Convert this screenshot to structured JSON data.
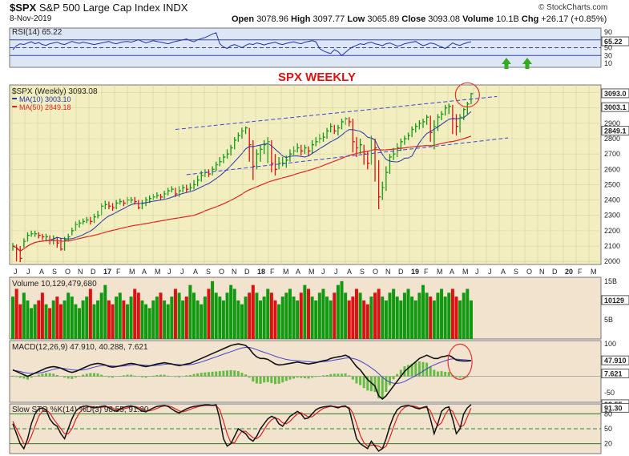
{
  "header": {
    "symbol": "$SPX",
    "name": "S&P 500 Large Cap Index",
    "exchange": "INDX",
    "date": "8-Nov-2019",
    "open_label": "Open",
    "open": "3078.96",
    "high_label": "High",
    "high": "3097.77",
    "low_label": "Low",
    "low": "3065.89",
    "close_label": "Close",
    "close": "3093.08",
    "volume_label": "Volume",
    "volume": "10.1B",
    "chg_label": "Chg",
    "chg": "+26.17 (+0.85%)",
    "watermark": "© StockCharts.com",
    "annotation": "SPX WEEKLY"
  },
  "colors": {
    "price_bg": "#f2eec0",
    "panel_bg": "#f2e3cf",
    "rsi_bg": "#dde6f4",
    "up": "#119911",
    "down": "#dd1111",
    "ma10": "#2233aa",
    "ma50": "#dd2222",
    "trendline": "#3344dd",
    "circle": "#e33333",
    "arrow": "#33aa22"
  },
  "chart_data": [
    {
      "id": "rsi",
      "type": "line",
      "legend": "RSI(14) 65.22",
      "ylim": [
        0,
        100
      ],
      "yticks": [
        "90",
        "70",
        "65.22",
        "50",
        "30",
        "10"
      ],
      "levels": [
        70,
        50,
        30
      ],
      "values": [
        45,
        55,
        60,
        58,
        62,
        65,
        60,
        63,
        58,
        56,
        60,
        62,
        64,
        60,
        58,
        62,
        66,
        63,
        61,
        64,
        62,
        60,
        58,
        60,
        62,
        64,
        66,
        62,
        60,
        63,
        65,
        66,
        64,
        67,
        70,
        66,
        62,
        65,
        68,
        66,
        64,
        62,
        60,
        63,
        66,
        68,
        70,
        72,
        68,
        65,
        70,
        73,
        76,
        80,
        85,
        88,
        60,
        52,
        48,
        55,
        58,
        54,
        50,
        56,
        60,
        58,
        62,
        60,
        57,
        60,
        62,
        64,
        60,
        58,
        61,
        63,
        65,
        62,
        60,
        64,
        66,
        68,
        65,
        48,
        42,
        38,
        35,
        45,
        40,
        30,
        38,
        46,
        52,
        56,
        60,
        58,
        62,
        64,
        60,
        58,
        55,
        60,
        62,
        58,
        54,
        56,
        60,
        62,
        64,
        66,
        60,
        55,
        58,
        62,
        60,
        56,
        52,
        48,
        55,
        62,
        58,
        56,
        60,
        63,
        65
      ]
    },
    {
      "id": "price",
      "type": "ohlc",
      "legend": "$SPX (Weekly) 3093.08",
      "series": [
        {
          "name": "MA(10) 3003.10",
          "kind": "ma",
          "period": 10
        },
        {
          "name": "MA(50) 2849.18",
          "kind": "ma",
          "period": 50
        }
      ],
      "ylim": [
        1980,
        3150
      ],
      "yticks": [
        "3000",
        "2900",
        "2800",
        "2700",
        "2600",
        "2500",
        "2400",
        "2300",
        "2200",
        "2100",
        "2000"
      ],
      "last_labels": [
        "3093.0",
        "3003.1",
        "2849.1"
      ],
      "xticks": [
        "J",
        "J",
        "A",
        "S",
        "O",
        "N",
        "D",
        "17",
        "F",
        "M",
        "A",
        "M",
        "J",
        "J",
        "A",
        "S",
        "O",
        "N",
        "D",
        "18",
        "F",
        "M",
        "A",
        "M",
        "J",
        "J",
        "A",
        "S",
        "O",
        "N",
        "D",
        "19",
        "F",
        "M",
        "A",
        "M",
        "J",
        "J",
        "A",
        "S",
        "O",
        "N",
        "D",
        "20",
        "F",
        "M"
      ],
      "closes": [
        2100,
        2080,
        2020,
        2130,
        2170,
        2180,
        2180,
        2170,
        2160,
        2160,
        2140,
        2150,
        2120,
        2080,
        2140,
        2160,
        2200,
        2240,
        2250,
        2260,
        2270,
        2260,
        2290,
        2300,
        2360,
        2370,
        2360,
        2350,
        2380,
        2390,
        2380,
        2400,
        2400,
        2390,
        2350,
        2380,
        2400,
        2410,
        2420,
        2430,
        2420,
        2440,
        2460,
        2470,
        2440,
        2460,
        2480,
        2470,
        2480,
        2500,
        2530,
        2560,
        2580,
        2570,
        2600,
        2630,
        2650,
        2680,
        2700,
        2740,
        2790,
        2820,
        2850,
        2870,
        2760,
        2620,
        2700,
        2730,
        2760,
        2780,
        2640,
        2600,
        2640,
        2640,
        2660,
        2700,
        2720,
        2740,
        2720,
        2740,
        2720,
        2760,
        2780,
        2800,
        2810,
        2850,
        2880,
        2850,
        2870,
        2910,
        2930,
        2910,
        2780,
        2740,
        2760,
        2700,
        2640,
        2800,
        2740,
        2420,
        2480,
        2580,
        2680,
        2700,
        2740,
        2780,
        2800,
        2820,
        2860,
        2880,
        2900,
        2910,
        2940,
        2840,
        2880,
        2940,
        2960,
        3000,
        3010,
        2930,
        2880,
        2940,
        2990,
        3025,
        3093
      ],
      "highs": [
        2120,
        2110,
        2100,
        2150,
        2190,
        2200,
        2200,
        2190,
        2180,
        2180,
        2170,
        2170,
        2160,
        2150,
        2160,
        2180,
        2220,
        2260,
        2270,
        2280,
        2290,
        2290,
        2310,
        2330,
        2380,
        2395,
        2390,
        2380,
        2400,
        2410,
        2400,
        2420,
        2420,
        2420,
        2400,
        2400,
        2420,
        2430,
        2440,
        2450,
        2440,
        2460,
        2480,
        2490,
        2480,
        2490,
        2500,
        2500,
        2510,
        2530,
        2560,
        2590,
        2600,
        2600,
        2620,
        2650,
        2680,
        2700,
        2730,
        2760,
        2810,
        2840,
        2872,
        2880,
        2870,
        2790,
        2730,
        2760,
        2790,
        2810,
        2790,
        2700,
        2680,
        2680,
        2690,
        2730,
        2750,
        2770,
        2760,
        2760,
        2750,
        2790,
        2810,
        2830,
        2840,
        2870,
        2900,
        2890,
        2890,
        2930,
        2940,
        2940,
        2930,
        2810,
        2800,
        2760,
        2720,
        2820,
        2800,
        2660,
        2520,
        2620,
        2700,
        2740,
        2770,
        2800,
        2820,
        2840,
        2880,
        2900,
        2920,
        2930,
        2955,
        2950,
        2920,
        2960,
        2980,
        3020,
        3028,
        3020,
        2960,
        2960,
        3000,
        3040,
        3098
      ],
      "lows": [
        2070,
        2000,
        1995,
        2090,
        2130,
        2160,
        2160,
        2150,
        2140,
        2130,
        2110,
        2110,
        2090,
        2070,
        2070,
        2130,
        2170,
        2200,
        2220,
        2240,
        2250,
        2240,
        2250,
        2280,
        2300,
        2340,
        2340,
        2330,
        2340,
        2370,
        2360,
        2370,
        2380,
        2370,
        2340,
        2340,
        2360,
        2380,
        2400,
        2410,
        2400,
        2410,
        2430,
        2450,
        2420,
        2420,
        2450,
        2450,
        2460,
        2470,
        2490,
        2520,
        2550,
        2550,
        2560,
        2590,
        2620,
        2640,
        2670,
        2690,
        2730,
        2780,
        2800,
        2830,
        2650,
        2530,
        2600,
        2650,
        2700,
        2640,
        2580,
        2560,
        2600,
        2620,
        2610,
        2650,
        2690,
        2710,
        2690,
        2700,
        2690,
        2700,
        2750,
        2770,
        2780,
        2800,
        2840,
        2830,
        2820,
        2860,
        2890,
        2880,
        2710,
        2680,
        2700,
        2630,
        2600,
        2630,
        2520,
        2340,
        2400,
        2460,
        2570,
        2660,
        2680,
        2720,
        2760,
        2790,
        2810,
        2840,
        2860,
        2870,
        2890,
        2780,
        2730,
        2850,
        2920,
        2950,
        2960,
        2830,
        2820,
        2840,
        2920,
        2960,
        3024
      ],
      "channel": {
        "upper": {
          "from": [
            44,
            2860
          ],
          "to": [
            131,
            3075
          ]
        },
        "lower": {
          "from": [
            47,
            2565
          ],
          "to": [
            134,
            2805
          ]
        }
      }
    },
    {
      "id": "volume",
      "type": "bar",
      "legend": "Volume 10,129,479,680",
      "ylim": [
        0,
        16
      ],
      "yticks": [
        "15B",
        "10129",
        "5B"
      ],
      "values": [
        11,
        13,
        9,
        12,
        10,
        8,
        9,
        10,
        12,
        9,
        8,
        10,
        11,
        9,
        10,
        12,
        11,
        9,
        8,
        10,
        11,
        13,
        9,
        10,
        12,
        14,
        10,
        9,
        11,
        12,
        10,
        9,
        11,
        13,
        12,
        10,
        9,
        8,
        10,
        11,
        12,
        10,
        9,
        11,
        13,
        12,
        10,
        11,
        14,
        12,
        10,
        9,
        11,
        13,
        15,
        12,
        11,
        10,
        12,
        14,
        13,
        10,
        9,
        11,
        12,
        14,
        12,
        10,
        11,
        13,
        12,
        10,
        9,
        11,
        12,
        13,
        11,
        10,
        12,
        14,
        13,
        11,
        10,
        12,
        13,
        11,
        10,
        12,
        14,
        15,
        12,
        10,
        11,
        13,
        12,
        10,
        9,
        11,
        12,
        13,
        11,
        10,
        12,
        13,
        11,
        10,
        12,
        13,
        11,
        10,
        12,
        14,
        12,
        11,
        10,
        12,
        13,
        11,
        12,
        13,
        11,
        10,
        12,
        13,
        10
      ]
    },
    {
      "id": "macd",
      "type": "line",
      "legend": "MACD(12,26,9) 47.910, 40.288, 7.621",
      "ylim": [
        -80,
        110
      ],
      "yticks": [
        "100",
        "47.910",
        "7.621",
        "-50"
      ],
      "macd": [
        20,
        15,
        10,
        5,
        0,
        5,
        10,
        15,
        20,
        25,
        28,
        30,
        28,
        25,
        20,
        15,
        12,
        15,
        20,
        25,
        30,
        35,
        38,
        40,
        38,
        35,
        30,
        28,
        30,
        32,
        35,
        38,
        40,
        38,
        35,
        32,
        30,
        32,
        35,
        38,
        40,
        42,
        40,
        38,
        35,
        33,
        35,
        38,
        40,
        45,
        50,
        55,
        60,
        65,
        70,
        75,
        80,
        85,
        90,
        95,
        98,
        100,
        98,
        95,
        85,
        70,
        60,
        55,
        55,
        52,
        45,
        38,
        35,
        36,
        38,
        40,
        42,
        44,
        42,
        40,
        38,
        40,
        42,
        45,
        48,
        50,
        55,
        58,
        60,
        62,
        65,
        60,
        45,
        30,
        20,
        5,
        -10,
        -20,
        -30,
        -60,
        -70,
        -60,
        -45,
        -30,
        -15,
        0,
        15,
        25,
        35,
        45,
        55,
        60,
        65,
        60,
        55,
        55,
        60,
        62,
        65,
        58,
        50,
        48,
        47,
        47,
        48
      ],
      "signal": [
        18,
        17,
        15,
        12,
        10,
        9,
        9,
        10,
        12,
        15,
        18,
        22,
        24,
        25,
        24,
        22,
        20,
        19,
        19,
        20,
        22,
        25,
        28,
        31,
        33,
        34,
        33,
        32,
        31,
        31,
        32,
        33,
        35,
        36,
        36,
        35,
        34,
        33,
        33,
        34,
        35,
        37,
        38,
        38,
        37,
        36,
        35,
        35,
        36,
        38,
        41,
        44,
        48,
        52,
        56,
        60,
        64,
        68,
        72,
        76,
        80,
        84,
        87,
        89,
        89,
        86,
        82,
        78,
        74,
        70,
        66,
        62,
        58,
        55,
        52,
        50,
        49,
        48,
        47,
        46,
        45,
        44,
        44,
        44,
        45,
        46,
        48,
        50,
        52,
        54,
        56,
        57,
        55,
        52,
        47,
        41,
        34,
        26,
        18,
        8,
        -3,
        -12,
        -18,
        -21,
        -22,
        -20,
        -16,
        -10,
        -4,
        2,
        9,
        16,
        23,
        30,
        35,
        40,
        44,
        48,
        52,
        54,
        53,
        52,
        51,
        50,
        49
      ],
      "histogram": [
        2,
        -2,
        -5,
        -7,
        -10,
        -4,
        1,
        5,
        8,
        10,
        10,
        8,
        4,
        0,
        -4,
        -7,
        -8,
        -4,
        1,
        5,
        8,
        10,
        10,
        9,
        5,
        1,
        -3,
        -4,
        -1,
        1,
        3,
        5,
        5,
        2,
        -1,
        -3,
        -4,
        -1,
        2,
        4,
        5,
        5,
        2,
        0,
        -2,
        -3,
        0,
        3,
        4,
        7,
        9,
        11,
        12,
        13,
        14,
        15,
        16,
        17,
        18,
        19,
        18,
        16,
        11,
        6,
        -4,
        -16,
        -22,
        -23,
        -19,
        -18,
        -21,
        -24,
        -23,
        -19,
        -14,
        -10,
        -7,
        -4,
        -5,
        -6,
        -7,
        -4,
        -2,
        1,
        3,
        4,
        7,
        8,
        8,
        8,
        9,
        3,
        -10,
        -22,
        -27,
        -36,
        -44,
        -46,
        -48,
        -68,
        -67,
        -48,
        -27,
        -9,
        7,
        20,
        31,
        35,
        39,
        43,
        46,
        44,
        42,
        30,
        20,
        15,
        16,
        14,
        13,
        4,
        -3,
        -4,
        -4,
        -3,
        -1
      ]
    },
    {
      "id": "sto",
      "type": "line",
      "legend": "Slow STO %K(14) %D(3) 98.55, 91.30",
      "ylim": [
        0,
        100
      ],
      "yticks": [
        "98.55",
        "91.30",
        "80",
        "50",
        "20"
      ],
      "levels": [
        80,
        50,
        20
      ],
      "k": [
        60,
        40,
        20,
        10,
        30,
        60,
        80,
        90,
        92,
        88,
        70,
        60,
        55,
        40,
        30,
        50,
        70,
        85,
        92,
        95,
        96,
        94,
        92,
        93,
        95,
        96,
        92,
        88,
        85,
        90,
        93,
        95,
        96,
        94,
        90,
        86,
        84,
        88,
        92,
        95,
        96,
        97,
        95,
        90,
        85,
        82,
        86,
        90,
        93,
        95,
        96,
        97,
        98,
        98,
        97,
        98,
        70,
        30,
        15,
        20,
        35,
        50,
        45,
        40,
        30,
        25,
        35,
        50,
        60,
        70,
        75,
        72,
        60,
        55,
        65,
        75,
        80,
        85,
        80,
        70,
        72,
        80,
        88,
        92,
        94,
        95,
        96,
        94,
        92,
        95,
        96,
        90,
        60,
        30,
        20,
        15,
        10,
        25,
        15,
        5,
        10,
        30,
        55,
        75,
        88,
        94,
        96,
        97,
        95,
        92,
        90,
        93,
        95,
        70,
        40,
        60,
        85,
        92,
        94,
        70,
        40,
        50,
        80,
        92,
        98.55
      ],
      "d": [
        65,
        50,
        35,
        20,
        20,
        35,
        55,
        75,
        85,
        88,
        82,
        70,
        60,
        50,
        40,
        40,
        50,
        68,
        82,
        90,
        93,
        95,
        94,
        93,
        93,
        94,
        94,
        92,
        88,
        88,
        90,
        92,
        94,
        95,
        93,
        90,
        87,
        86,
        88,
        91,
        94,
        96,
        96,
        94,
        90,
        86,
        84,
        86,
        89,
        92,
        94,
        96,
        97,
        97,
        97,
        97,
        88,
        65,
        40,
        22,
        22,
        35,
        45,
        45,
        38,
        32,
        30,
        36,
        48,
        60,
        68,
        72,
        69,
        62,
        60,
        65,
        73,
        80,
        82,
        78,
        74,
        74,
        80,
        86,
        91,
        93,
        95,
        95,
        94,
        94,
        94,
        93,
        82,
        60,
        37,
        22,
        15,
        17,
        17,
        15,
        10,
        15,
        32,
        53,
        73,
        86,
        93,
        96,
        96,
        95,
        92,
        92,
        93,
        86,
        68,
        56,
        62,
        79,
        90,
        85,
        68,
        53,
        57,
        74,
        91.3
      ]
    }
  ]
}
